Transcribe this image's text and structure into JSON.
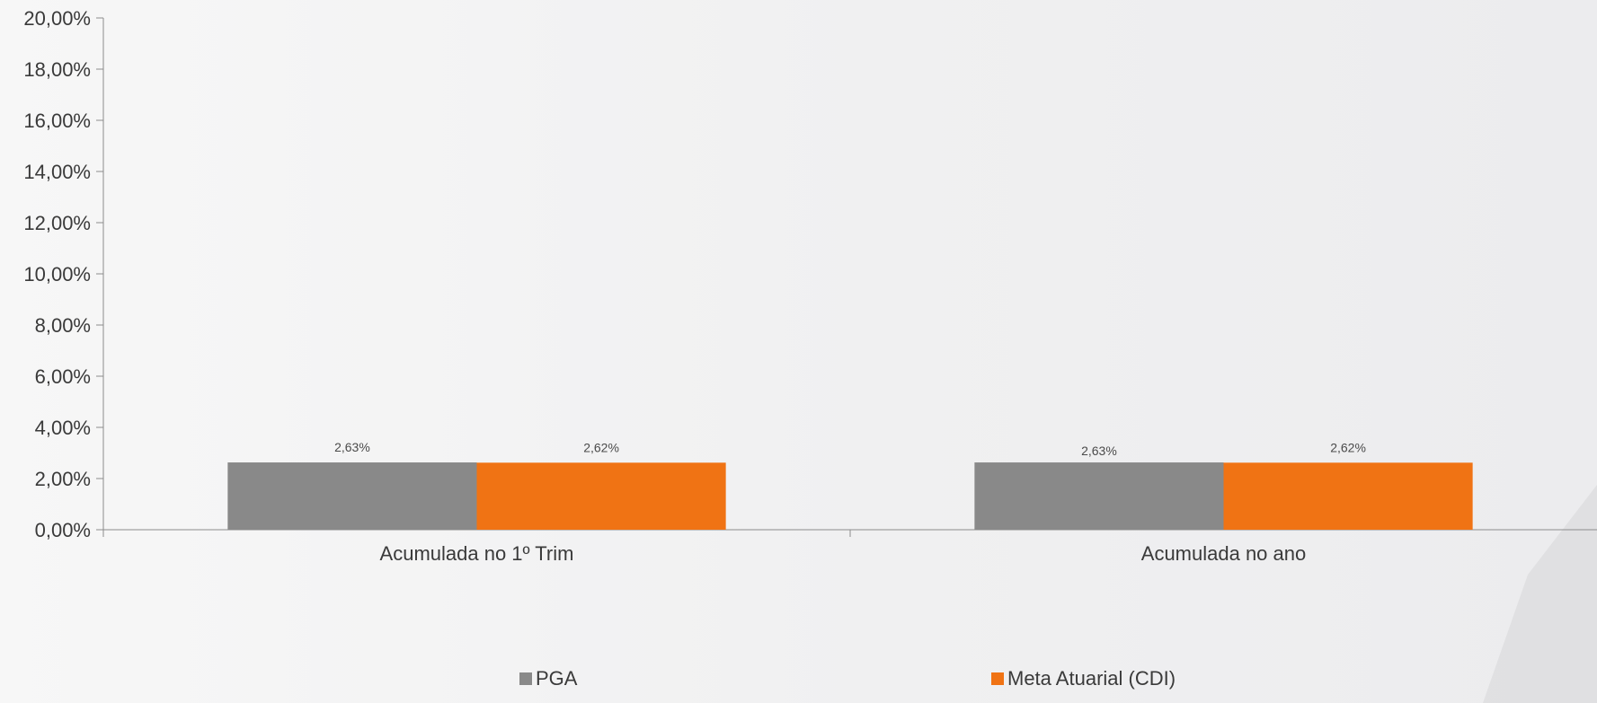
{
  "chart_data": {
    "type": "bar",
    "title": "",
    "xlabel": "",
    "ylabel": "",
    "categories": [
      "Acumulada no 1º Trim",
      "Acumulada no ano"
    ],
    "series": [
      {
        "name": "PGA",
        "values": [
          2.63,
          2.63
        ],
        "labels": [
          "2,63%",
          "2,63%"
        ],
        "color": "#898989"
      },
      {
        "name": "Meta Atuarial (CDI)",
        "values": [
          2.62,
          2.62
        ],
        "labels": [
          "2,62%",
          "2,62%"
        ],
        "color": "#f07314"
      }
    ],
    "ylim": [
      0,
      20
    ],
    "yticks": [
      {
        "value": 0,
        "label": "0,00%"
      },
      {
        "value": 2,
        "label": "2,00%"
      },
      {
        "value": 4,
        "label": "4,00%"
      },
      {
        "value": 6,
        "label": "6,00%"
      },
      {
        "value": 8,
        "label": "8,00%"
      },
      {
        "value": 10,
        "label": "10,00%"
      },
      {
        "value": 12,
        "label": "12,00%"
      },
      {
        "value": 14,
        "label": "14,00%"
      },
      {
        "value": 16,
        "label": "16,00%"
      },
      {
        "value": 18,
        "label": "18,00%"
      },
      {
        "value": 20,
        "label": "20,00%"
      }
    ],
    "grid": false,
    "legend_position": "bottom"
  }
}
